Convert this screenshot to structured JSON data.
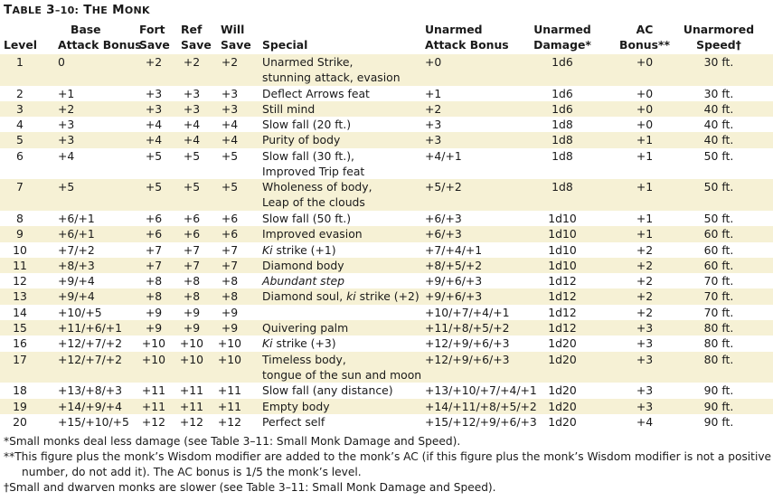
{
  "title": "Table 3–10: The Monk",
  "headers": {
    "level": [
      "",
      "Level"
    ],
    "bab": [
      "Base",
      "Attack Bonus"
    ],
    "fort": [
      "Fort",
      "Save"
    ],
    "ref": [
      "Ref",
      "Save"
    ],
    "will": [
      "Will",
      "Save"
    ],
    "special": [
      "",
      "Special"
    ],
    "uab": [
      "Unarmed",
      "Attack Bonus"
    ],
    "ud": [
      "Unarmed",
      "Damage*"
    ],
    "ac": [
      "AC",
      "Bonus**"
    ],
    "speed": [
      "Unarmored",
      "Speed†"
    ]
  },
  "rows": [
    {
      "level": "1",
      "bab": "0",
      "fort": "+2",
      "ref": "+2",
      "will": "+2",
      "special": [
        "Unarmed Strike,",
        "stunning attack, evasion"
      ],
      "uab": "+0",
      "ud": "1d6",
      "ac": "+0",
      "speed": "30 ft.",
      "shade": true
    },
    {
      "level": "2",
      "bab": "+1",
      "fort": "+3",
      "ref": "+3",
      "will": "+3",
      "special": [
        "Deflect Arrows feat"
      ],
      "uab": "+1",
      "ud": "1d6",
      "ac": "+0",
      "speed": "30 ft.",
      "shade": false
    },
    {
      "level": "3",
      "bab": "+2",
      "fort": "+3",
      "ref": "+3",
      "will": "+3",
      "special": [
        "Still mind"
      ],
      "uab": "+2",
      "ud": "1d6",
      "ac": "+0",
      "speed": "40 ft.",
      "shade": true
    },
    {
      "level": "4",
      "bab": "+3",
      "fort": "+4",
      "ref": "+4",
      "will": "+4",
      "special": [
        "Slow fall (20 ft.)"
      ],
      "uab": "+3",
      "ud": "1d8",
      "ac": "+0",
      "speed": "40 ft.",
      "shade": false
    },
    {
      "level": "5",
      "bab": "+3",
      "fort": "+4",
      "ref": "+4",
      "will": "+4",
      "special": [
        "Purity of body"
      ],
      "uab": "+3",
      "ud": "1d8",
      "ac": "+1",
      "speed": "40 ft.",
      "shade": true
    },
    {
      "level": "6",
      "bab": "+4",
      "fort": "+5",
      "ref": "+5",
      "will": "+5",
      "special": [
        "Slow fall (30 ft.),",
        "Improved Trip feat"
      ],
      "uab": "+4/+1",
      "ud": "1d8",
      "ac": "+1",
      "speed": "50 ft.",
      "shade": false
    },
    {
      "level": "7",
      "bab": "+5",
      "fort": "+5",
      "ref": "+5",
      "will": "+5",
      "special": [
        "Wholeness of body,",
        "Leap of the clouds"
      ],
      "uab": "+5/+2",
      "ud": "1d8",
      "ac": "+1",
      "speed": "50 ft.",
      "shade": true
    },
    {
      "level": "8",
      "bab": "+6/+1",
      "fort": "+6",
      "ref": "+6",
      "will": "+6",
      "special": [
        "Slow fall (50 ft.)"
      ],
      "uab": "+6/+3",
      "ud": "1d10",
      "ac": "+1",
      "speed": "50 ft.",
      "shade": false
    },
    {
      "level": "9",
      "bab": "+6/+1",
      "fort": "+6",
      "ref": "+6",
      "will": "+6",
      "special": [
        "Improved evasion"
      ],
      "uab": "+6/+3",
      "ud": "1d10",
      "ac": "+1",
      "speed": "60 ft.",
      "shade": true
    },
    {
      "level": "10",
      "bab": "+7/+2",
      "fort": "+7",
      "ref": "+7",
      "will": "+7",
      "special": [
        "<i>Ki</i> strike (+1)"
      ],
      "uab": "+7/+4/+1",
      "ud": "1d10",
      "ac": "+2",
      "speed": "60 ft.",
      "shade": false
    },
    {
      "level": "11",
      "bab": "+8/+3",
      "fort": "+7",
      "ref": "+7",
      "will": "+7",
      "special": [
        "Diamond body"
      ],
      "uab": "+8/+5/+2",
      "ud": "1d10",
      "ac": "+2",
      "speed": "60 ft.",
      "shade": true
    },
    {
      "level": "12",
      "bab": "+9/+4",
      "fort": "+8",
      "ref": "+8",
      "will": "+8",
      "special": [
        "<i>Abundant step</i>"
      ],
      "uab": "+9/+6/+3",
      "ud": "1d12",
      "ac": "+2",
      "speed": "70 ft.",
      "shade": false
    },
    {
      "level": "13",
      "bab": "+9/+4",
      "fort": "+8",
      "ref": "+8",
      "will": "+8",
      "special": [
        "Diamond soul, <i>ki</i> strike (+2)"
      ],
      "uab": "+9/+6/+3",
      "ud": "1d12",
      "ac": "+2",
      "speed": "70 ft.",
      "shade": true
    },
    {
      "level": "14",
      "bab": "+10/+5",
      "fort": "+9",
      "ref": "+9",
      "will": "+9",
      "special": [
        ""
      ],
      "uab": "+10/+7/+4/+1",
      "ud": "1d12",
      "ac": "+2",
      "speed": "70 ft.",
      "shade": false
    },
    {
      "level": "15",
      "bab": "+11/+6/+1",
      "fort": "+9",
      "ref": "+9",
      "will": "+9",
      "special": [
        "Quivering palm"
      ],
      "uab": "+11/+8/+5/+2",
      "ud": "1d12",
      "ac": "+3",
      "speed": "80 ft.",
      "shade": true
    },
    {
      "level": "16",
      "bab": "+12/+7/+2",
      "fort": "+10",
      "ref": "+10",
      "will": "+10",
      "special": [
        "<i>Ki</i> strike (+3)"
      ],
      "uab": "+12/+9/+6/+3",
      "ud": "1d20",
      "ac": "+3",
      "speed": "80 ft.",
      "shade": false
    },
    {
      "level": "17",
      "bab": "+12/+7/+2",
      "fort": "+10",
      "ref": "+10",
      "will": "+10",
      "special": [
        "Timeless body,",
        "tongue of the sun and moon"
      ],
      "uab": "+12/+9/+6/+3",
      "ud": "1d20",
      "ac": "+3",
      "speed": "80 ft.",
      "shade": true
    },
    {
      "level": "18",
      "bab": "+13/+8/+3",
      "fort": "+11",
      "ref": "+11",
      "will": "+11",
      "special": [
        "Slow fall (any distance)"
      ],
      "uab": "+13/+10/+7/+4/+1",
      "ud": "1d20",
      "ac": "+3",
      "speed": "90 ft.",
      "shade": false
    },
    {
      "level": "19",
      "bab": "+14/+9/+4",
      "fort": "+11",
      "ref": "+11",
      "will": "+11",
      "special": [
        "Empty body"
      ],
      "uab": "+14/+11/+8/+5/+2",
      "ud": "1d20",
      "ac": "+3",
      "speed": "90 ft.",
      "shade": true
    },
    {
      "level": "20",
      "bab": "+15/+10/+5",
      "fort": "+12",
      "ref": "+12",
      "will": "+12",
      "special": [
        "Perfect self"
      ],
      "uab": "+15/+12/+9/+6/+3",
      "ud": "1d20",
      "ac": "+4",
      "speed": "90 ft.",
      "shade": false
    }
  ],
  "notes": [
    "*Small monks deal less damage (see Table 3–11: Small Monk Damage and Speed).",
    "**This figure plus the monk’s Wisdom modifier are added to the monk’s AC (if this figure plus the monk’s Wisdom modifier is not a positive",
    "number, do not add it). The AC bonus is 1/5 the monk’s level.",
    "†Small and dwarven monks are slower (see Table 3–11: Small Monk Damage and Speed)."
  ]
}
